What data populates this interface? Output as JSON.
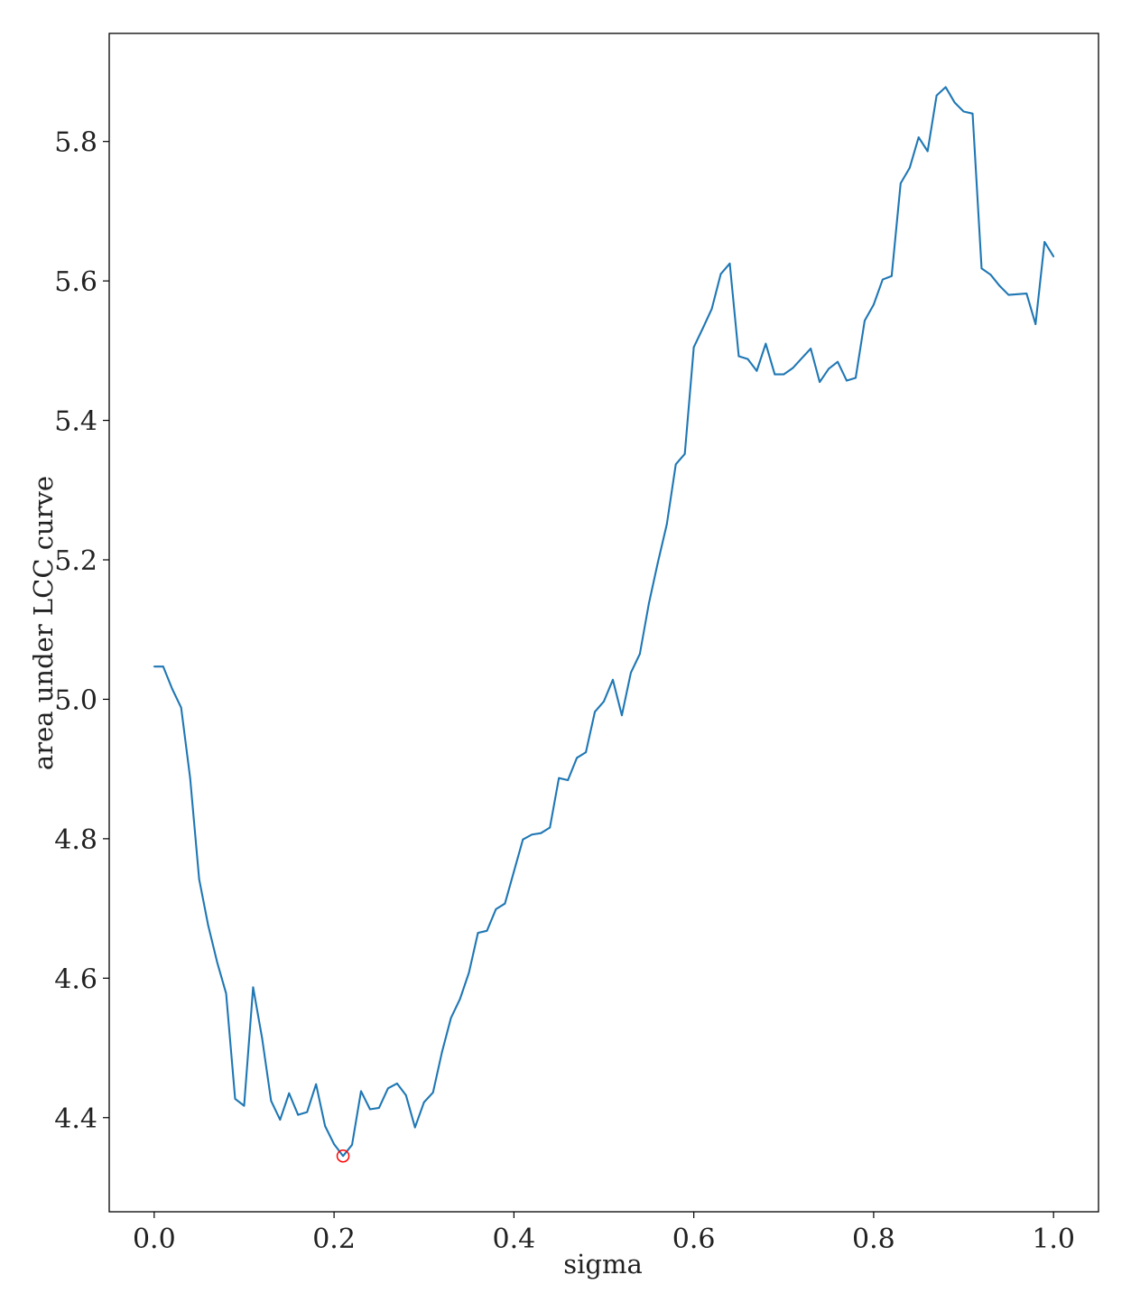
{
  "chart_data": {
    "type": "line",
    "title": "",
    "xlabel": "sigma",
    "ylabel": "area under LCC curve",
    "xlim": [
      -0.05,
      1.05
    ],
    "ylim": [
      4.265,
      5.955
    ],
    "xticks": [
      0.0,
      0.2,
      0.4,
      0.6,
      0.8,
      1.0
    ],
    "xtick_labels": [
      "0.0",
      "0.2",
      "0.4",
      "0.6",
      "0.8",
      "1.0"
    ],
    "yticks": [
      4.4,
      4.6,
      4.8,
      5.0,
      5.2,
      5.4,
      5.6,
      5.8
    ],
    "ytick_labels": [
      "4.4",
      "4.6",
      "4.8",
      "5.0",
      "5.2",
      "5.4",
      "5.6",
      "5.8"
    ],
    "grid": false,
    "legend": "none",
    "series": [
      {
        "color": "#1f77b4",
        "x": [
          0.0,
          0.01,
          0.02,
          0.03,
          0.04,
          0.05,
          0.06,
          0.07,
          0.08,
          0.09,
          0.1,
          0.11,
          0.12,
          0.13,
          0.14,
          0.15,
          0.16,
          0.17,
          0.18,
          0.19,
          0.2,
          0.21,
          0.22,
          0.23,
          0.24,
          0.25,
          0.26,
          0.27,
          0.28,
          0.29,
          0.3,
          0.31,
          0.32,
          0.33,
          0.34,
          0.35,
          0.36,
          0.37,
          0.38,
          0.39,
          0.4,
          0.41,
          0.42,
          0.43,
          0.44,
          0.45,
          0.46,
          0.47,
          0.48,
          0.49,
          0.5,
          0.51,
          0.52,
          0.53,
          0.54,
          0.55,
          0.56,
          0.57,
          0.58,
          0.59,
          0.6,
          0.61,
          0.62,
          0.63,
          0.64,
          0.65,
          0.66,
          0.67,
          0.68,
          0.69,
          0.7,
          0.71,
          0.72,
          0.73,
          0.74,
          0.75,
          0.76,
          0.77,
          0.78,
          0.79,
          0.8,
          0.81,
          0.82,
          0.83,
          0.84,
          0.85,
          0.86,
          0.87,
          0.88,
          0.89,
          0.9,
          0.91,
          0.92,
          0.93,
          0.94,
          0.95,
          0.96,
          0.97,
          0.98,
          0.99,
          1.0
        ],
        "y": [
          5.047,
          5.047,
          5.015,
          4.988,
          4.887,
          4.742,
          4.676,
          4.623,
          4.578,
          4.427,
          4.417,
          4.587,
          4.514,
          4.424,
          4.397,
          4.435,
          4.404,
          4.408,
          4.448,
          4.388,
          4.362,
          4.345,
          4.361,
          4.438,
          4.412,
          4.414,
          4.442,
          4.449,
          4.432,
          4.386,
          4.422,
          4.436,
          4.494,
          4.543,
          4.57,
          4.608,
          4.665,
          4.668,
          4.699,
          4.707,
          4.753,
          4.799,
          4.806,
          4.808,
          4.816,
          4.887,
          4.884,
          4.916,
          4.924,
          4.982,
          4.997,
          5.028,
          4.977,
          5.038,
          5.065,
          5.137,
          5.196,
          5.251,
          5.337,
          5.352,
          5.505,
          5.532,
          5.56,
          5.61,
          5.625,
          5.492,
          5.488,
          5.471,
          5.51,
          5.466,
          5.466,
          5.475,
          5.489,
          5.503,
          5.455,
          5.474,
          5.484,
          5.457,
          5.461,
          5.543,
          5.566,
          5.602,
          5.607,
          5.74,
          5.762,
          5.806,
          5.786,
          5.866,
          5.878,
          5.856,
          5.843,
          5.84,
          5.618,
          5.609,
          5.593,
          5.58,
          5.581,
          5.582,
          5.538,
          5.656,
          5.635
        ]
      }
    ],
    "marker": {
      "x": 0.21,
      "y": 4.345,
      "style": "open-circle",
      "color": "#ff0000"
    }
  }
}
